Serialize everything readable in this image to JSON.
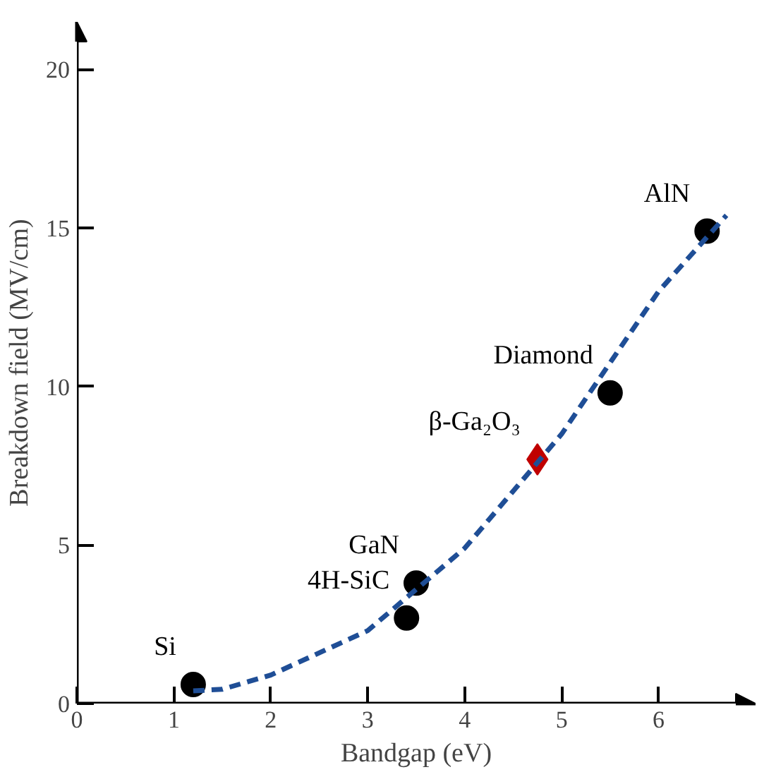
{
  "chart_data": {
    "type": "scatter",
    "xlabel": "Bandgap (eV)",
    "ylabel": "Breakdown field (MV/cm)",
    "xlim": [
      0,
      7.0
    ],
    "ylim": [
      0,
      21.5
    ],
    "xticks": [
      0,
      1,
      2,
      3,
      4,
      5,
      6
    ],
    "yticks": [
      0,
      5,
      10,
      15,
      20
    ],
    "grid": false,
    "series": [
      {
        "color": "#000000",
        "marker": "circle",
        "x": [
          1.2,
          3.4,
          3.5,
          5.5,
          6.5
        ],
        "values": [
          0.6,
          2.7,
          3.8,
          9.8,
          14.9
        ]
      },
      {
        "color": "#c00000",
        "marker": "diamond",
        "x": [
          4.75
        ],
        "values": [
          7.7
        ]
      },
      {
        "type": "line",
        "color": "#1f4e96",
        "line_style": "dashed",
        "x": [
          1.2,
          1.5,
          2.0,
          3.0,
          4.0,
          5.0,
          6.0,
          6.7
        ],
        "values": [
          0.4,
          0.45,
          0.9,
          2.3,
          4.9,
          8.5,
          13.0,
          15.4
        ]
      }
    ],
    "annotations": [
      {
        "text": "Si",
        "x": 1.2,
        "y": 0.6
      },
      {
        "text": "4H-SiC",
        "x": 3.4,
        "y": 2.7
      },
      {
        "text": "GaN",
        "x": 3.5,
        "y": 3.8
      },
      {
        "text": "β-Ga₂O₃",
        "x": 4.75,
        "y": 7.7
      },
      {
        "text": "Diamond",
        "x": 5.5,
        "y": 9.8
      },
      {
        "text": "AlN",
        "x": 6.5,
        "y": 14.9
      }
    ]
  }
}
